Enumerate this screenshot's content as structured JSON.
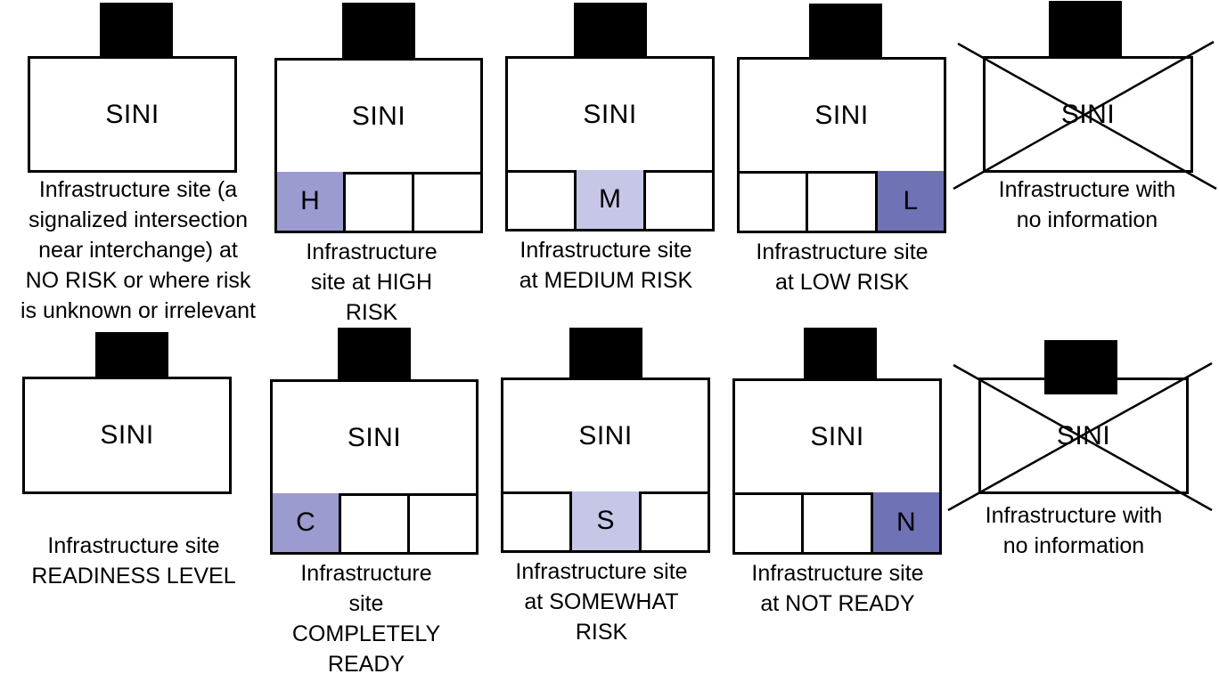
{
  "colors": {
    "high": "#9b9bd0",
    "medium": "#c6c6e6",
    "low": "#6f72b5",
    "outline": "#000000"
  },
  "row1": {
    "icons": [
      {
        "label": "SINI",
        "caption": "Infrastructure site (a\nsignalized intersection\nnear interchange) at\nNO RISK or where risk\nis unknown or irrelevant"
      },
      {
        "label": "SINI",
        "cells": [
          "H",
          "",
          ""
        ],
        "active": 0,
        "caption": "Infrastructure\nsite at HIGH\nRISK"
      },
      {
        "label": "SINI",
        "cells": [
          "",
          "M",
          ""
        ],
        "active": 1,
        "caption": "Infrastructure site\nat MEDIUM RISK"
      },
      {
        "label": "SINI",
        "cells": [
          "",
          "",
          "L"
        ],
        "active": 2,
        "caption": "Infrastructure site\nat LOW RISK"
      },
      {
        "label": "SINI",
        "caption": "Infrastructure with\nno information"
      }
    ]
  },
  "row2": {
    "icons": [
      {
        "label": "SINI",
        "caption": "Infrastructure site\nREADINESS LEVEL"
      },
      {
        "label": "SINI",
        "cells": [
          "C",
          "",
          ""
        ],
        "active": 0,
        "caption": "Infrastructure\nsite\nCOMPLETELY\nREADY"
      },
      {
        "label": "SINI",
        "cells": [
          "",
          "S",
          ""
        ],
        "active": 1,
        "caption": "Infrastructure site\nat SOMEWHAT\nRISK"
      },
      {
        "label": "SINI",
        "cells": [
          "",
          "",
          "N"
        ],
        "active": 2,
        "caption": "Infrastructure site\nat NOT READY"
      },
      {
        "label": "SINI",
        "caption": "Infrastructure with\nno information"
      }
    ]
  }
}
